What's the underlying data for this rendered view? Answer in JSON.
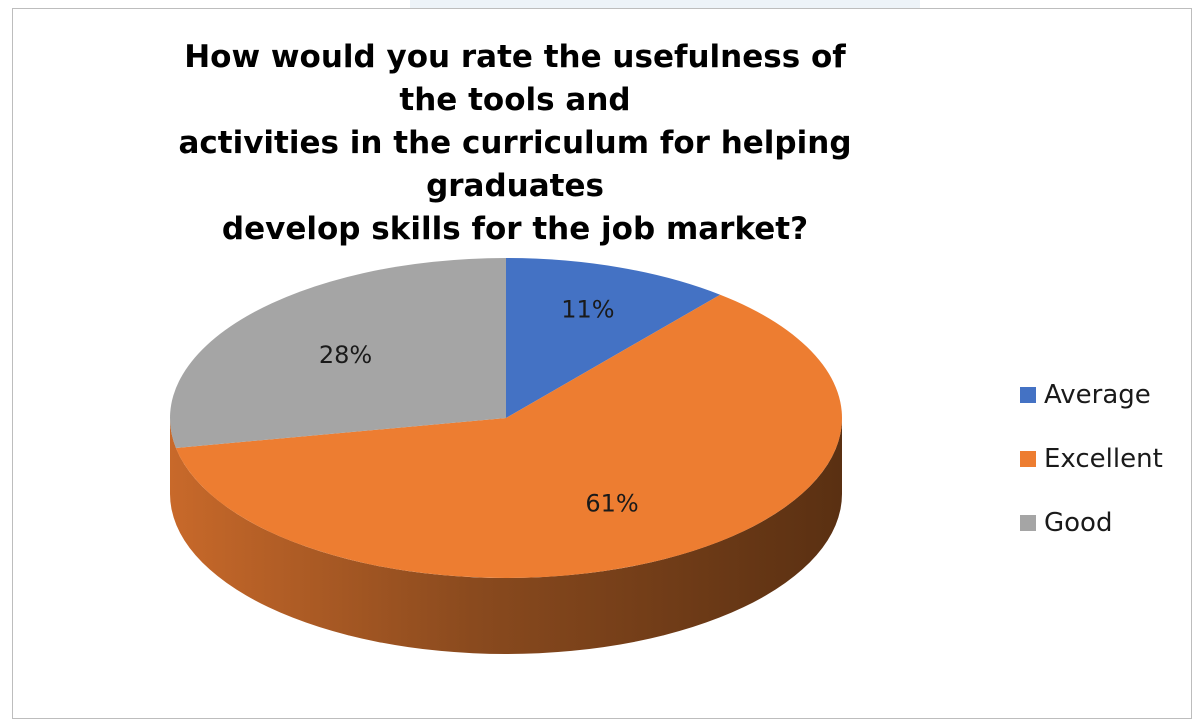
{
  "chart_data": {
    "type": "pie",
    "title_lines": [
      "How would you rate the usefulness of the tools and",
      "activities in the curriculum for helping graduates",
      "develop skills for the job market?"
    ],
    "categories": [
      "Average",
      "Excellent",
      "Good"
    ],
    "values": [
      11,
      61,
      28
    ],
    "labels": [
      "11%",
      "61%",
      "28%"
    ],
    "colors": [
      "#4472c4",
      "#ed7d31",
      "#a5a5a5"
    ],
    "legend_position": "right",
    "style": "3d-pie"
  }
}
